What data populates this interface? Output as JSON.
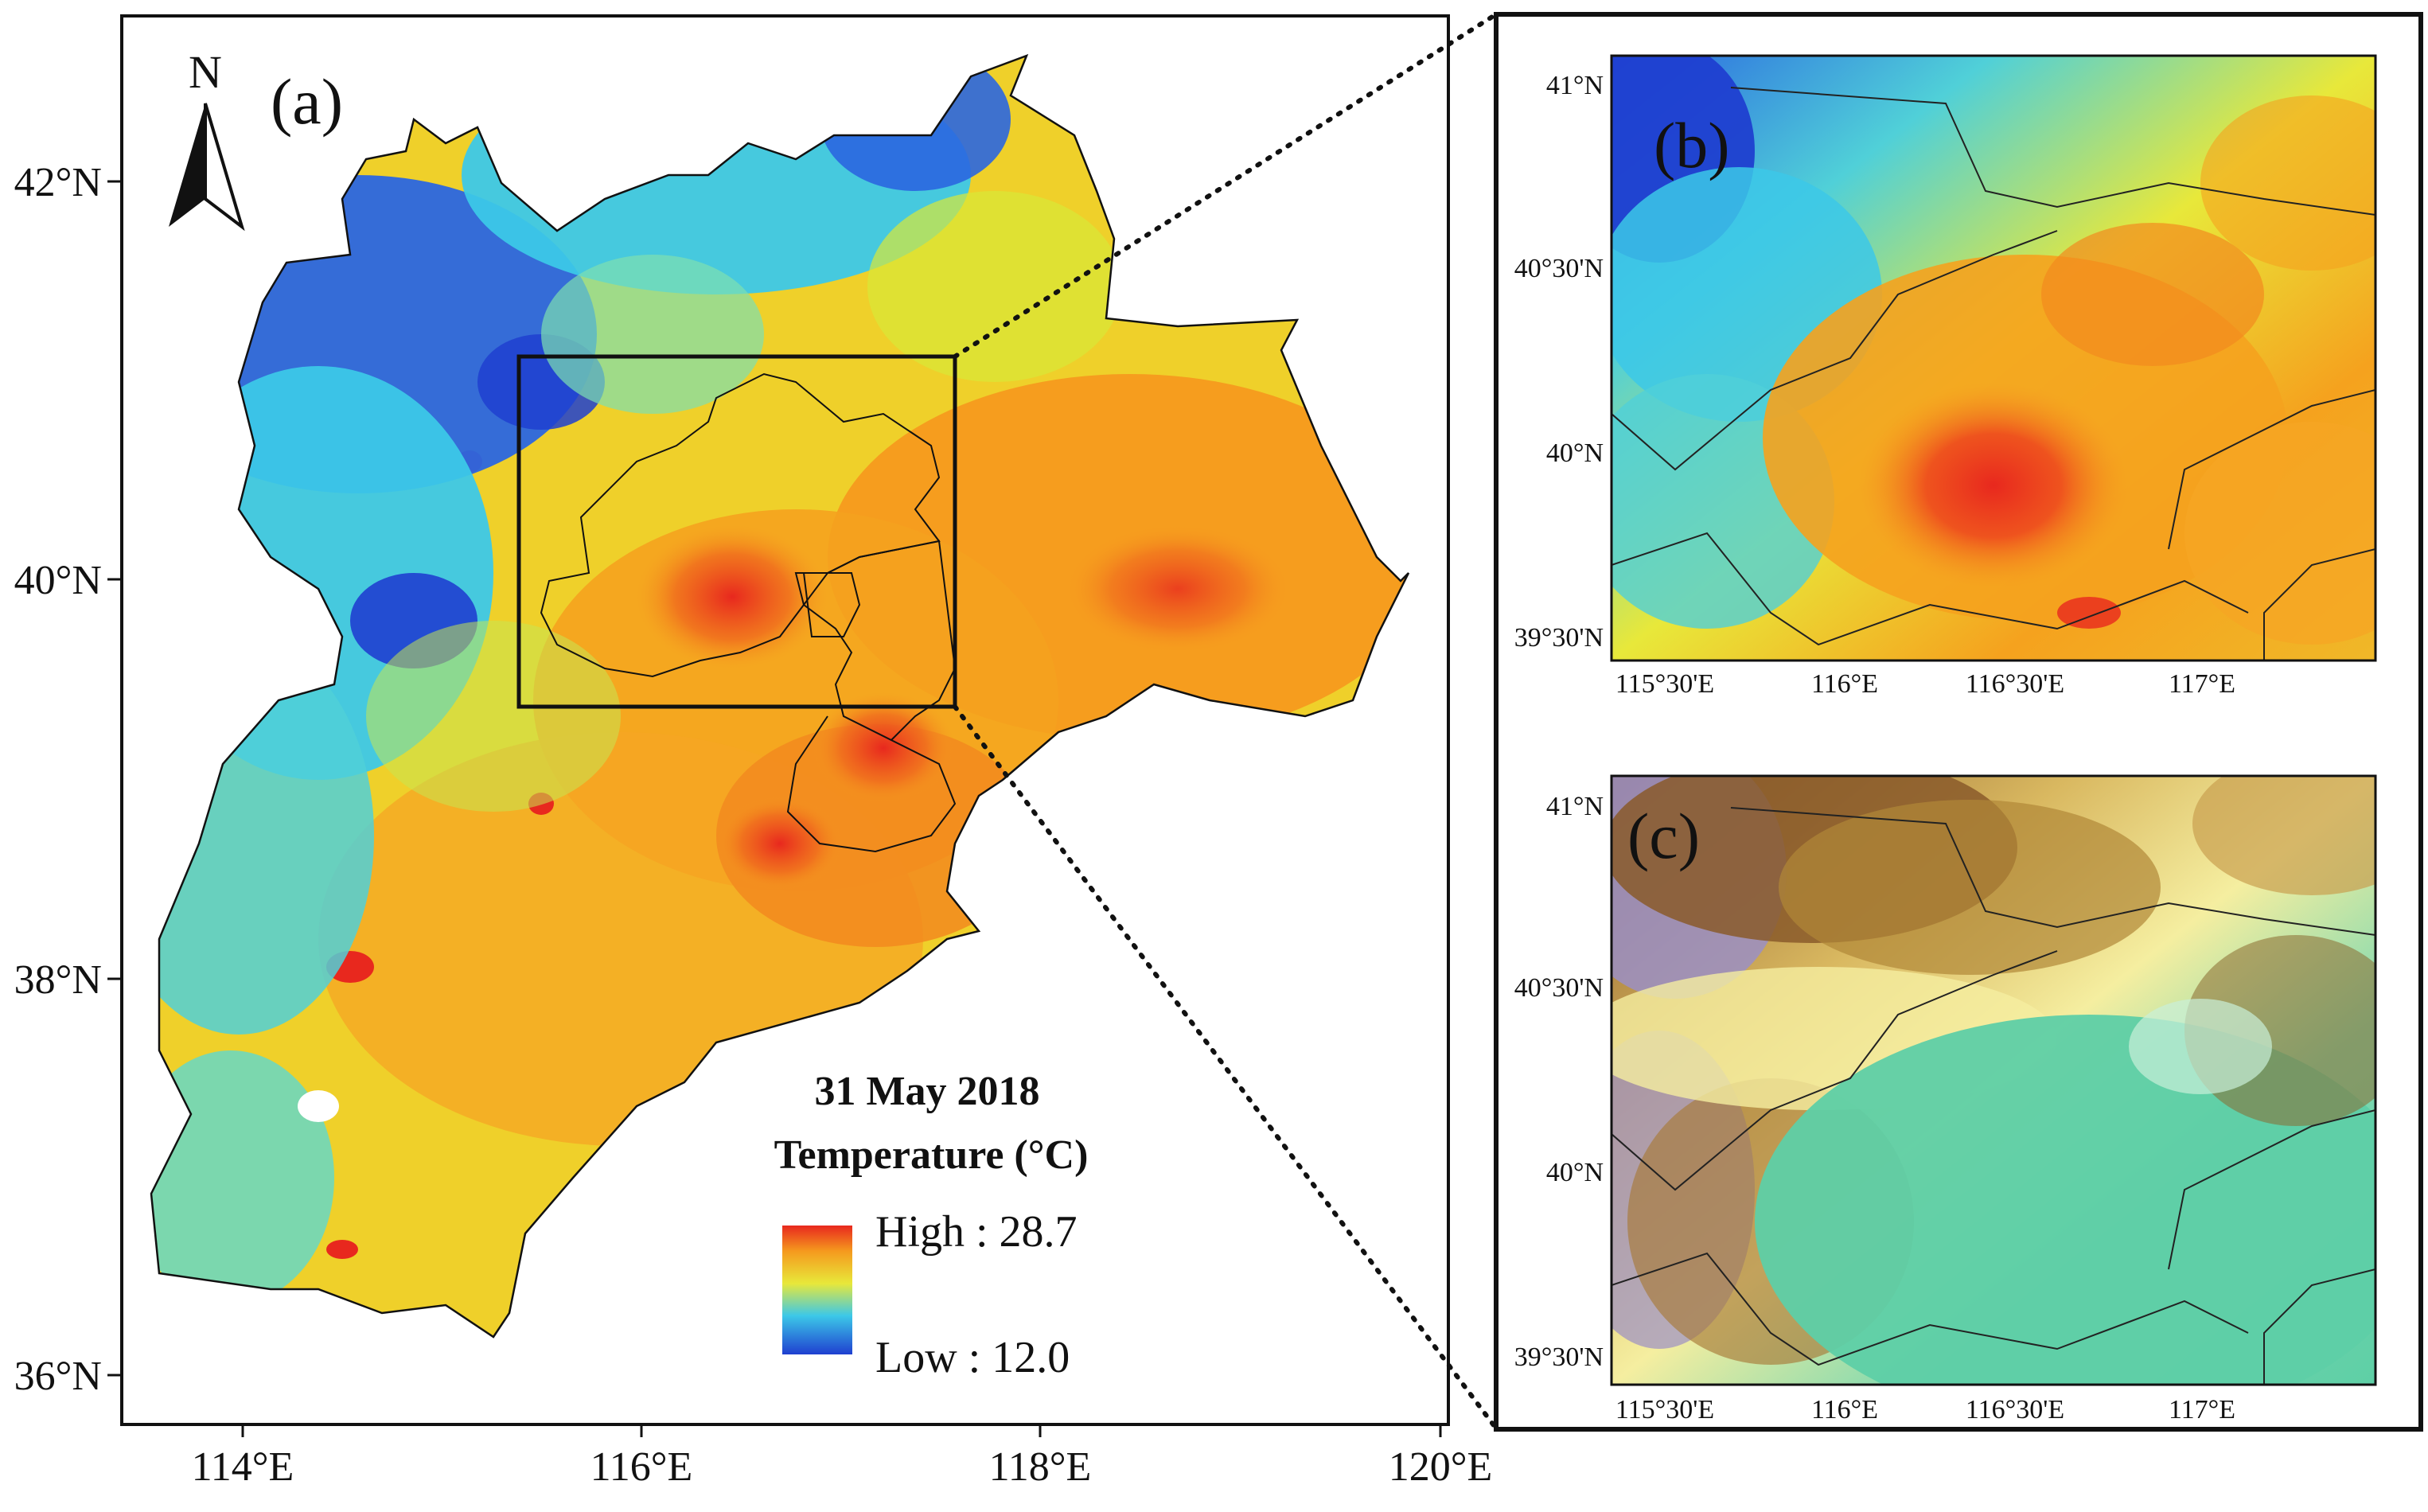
{
  "figure": {
    "panels": {
      "a": {
        "label": "(a)",
        "north_label": "N",
        "lat_ticks": [
          "42°N",
          "40°N",
          "38°N",
          "36°N"
        ],
        "lon_ticks": [
          "114°E",
          "116°E",
          "118°E",
          "120°E"
        ]
      },
      "b": {
        "label": "(b)",
        "lat_ticks": [
          "41°N",
          "40°30'N",
          "40°N",
          "39°30'N"
        ],
        "lon_ticks": [
          "115°30'E",
          "116°E",
          "116°30'E",
          "117°E"
        ]
      },
      "c": {
        "label": "(c)",
        "lat_ticks": [
          "41°N",
          "40°30'N",
          "40°N",
          "39°30'N"
        ],
        "lon_ticks": [
          "115°30'E",
          "116°E",
          "116°30'E",
          "117°E"
        ]
      }
    },
    "legend": {
      "date": "31 May 2018",
      "title": "Temperature (°C)",
      "high_label": "High : 28.7",
      "low_label": "Low : 12.0",
      "high_value": 28.7,
      "low_value": 12.0
    },
    "colors": {
      "cold": "#1f3fd0",
      "cool": "#3cc8e8",
      "mild": "#e8e83a",
      "warm": "#f59a1e",
      "hot": "#e8281e",
      "terrain_low": "#5ecfa6",
      "terrain_mid": "#f5eea0",
      "terrain_high": "#8a5a2a",
      "terrain_peak": "#9b8fc4"
    }
  }
}
